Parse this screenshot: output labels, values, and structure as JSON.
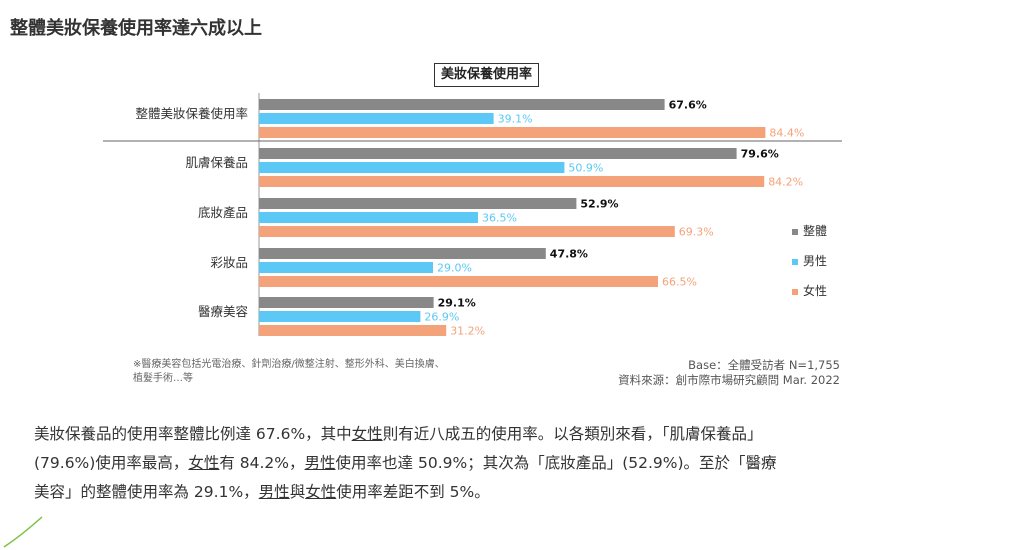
{
  "page_title": "整體美妝保養使用率達六成以上",
  "chart_data": {
    "type": "bar",
    "orientation": "horizontal",
    "title": "美妝保養使用率",
    "categories": [
      "整體美妝保養使用率",
      "肌膚保養品",
      "底妝產品",
      "彩妝品",
      "醫療美容"
    ],
    "series": [
      {
        "name": "整體",
        "values": [
          67.6,
          79.6,
          52.9,
          47.8,
          29.1
        ],
        "labels": [
          "67.6%",
          "79.6%",
          "52.9%",
          "47.8%",
          "29.1%"
        ]
      },
      {
        "name": "男性",
        "values": [
          39.1,
          50.9,
          36.5,
          29.0,
          26.9
        ],
        "labels": [
          "39.1%",
          "50.9%",
          "36.5%",
          "29.0%",
          "26.9%"
        ]
      },
      {
        "name": "女性",
        "values": [
          84.4,
          84.2,
          69.3,
          66.5,
          31.2
        ],
        "labels": [
          "84.4%",
          "84.2%",
          "69.3%",
          "66.5%",
          "31.2%"
        ]
      }
    ],
    "xlim": [
      0,
      100
    ],
    "legend_position": "right",
    "colors": {
      "整體": "#888888",
      "男性": "#5bc8f5",
      "女性": "#f4a27a"
    }
  },
  "footnote": {
    "line1": "※醫療美容包括光電治療、針劑治療/微整注射、整形外科、美白換膚、",
    "line2": "植髮手術…等"
  },
  "source": {
    "line1": "Base：全體受訪者 N=1,755",
    "line2": "資料來源：創市際市場研究顧問 Mar. 2022"
  },
  "paragraph": {
    "s1": "美妝保養品的使用率整體比例達  67.6%，其中",
    "u1": "女性",
    "s2": "則有近八成五的使用率。以各類別來看，「肌膚保養品」",
    "s3": "(79.6%)使用率最高，",
    "u2": "女性",
    "s4": "有  84.2%，",
    "u3": "男性",
    "s5": "使用率也達  50.9%；其次為「底妝產品」(52.9%)。至於「醫療",
    "s6": "美容」的整體使用率為 29.1%，",
    "u4": "男性",
    "s7": "與",
    "u5": "女性",
    "s8": "使用率差距不到 5%。"
  }
}
